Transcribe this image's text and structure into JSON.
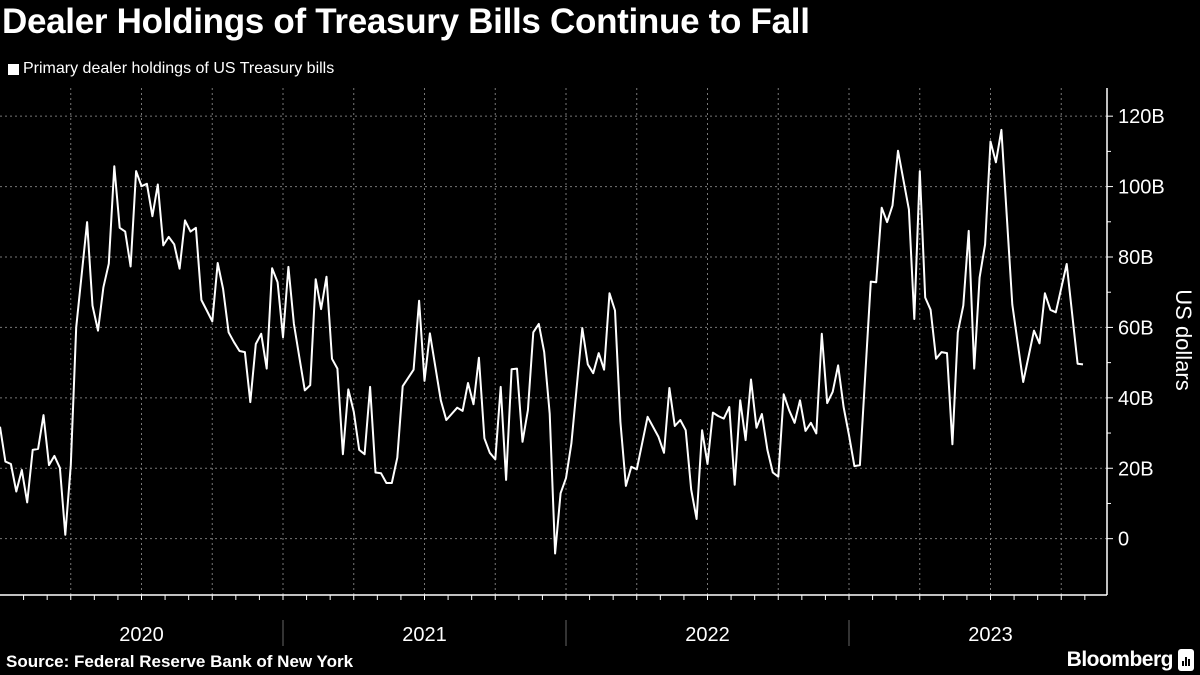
{
  "chart_data": {
    "type": "line",
    "title": "Dealer Holdings of Treasury Bills Continue to Fall",
    "ylabel": "US dollars",
    "xlabel": "",
    "x_tick_labels": [
      "2020",
      "2021",
      "2022",
      "2023"
    ],
    "y_ticks": [
      0,
      20,
      40,
      60,
      80,
      100,
      120
    ],
    "y_tick_labels": [
      "0",
      "20B",
      "40B",
      "60B",
      "80B",
      "100B",
      "120B"
    ],
    "ylim": [
      -16,
      128
    ],
    "y_unit": "billions of US dollars",
    "grid": true,
    "legend_position": "top-left",
    "line_color": "#ffffff",
    "background_color": "#000000",
    "series": [
      {
        "name": "Primary dealer holdings of US Treasury bills",
        "points": [
          [
            "2020-W01",
            31.8
          ],
          [
            "2020-W02",
            21.9
          ],
          [
            "2020-W03",
            21.2
          ],
          [
            "2020-W04",
            13.4
          ],
          [
            "2020-W05",
            19.5
          ],
          [
            "2020-W06",
            10.3
          ],
          [
            "2020-W07",
            25.2
          ],
          [
            "2020-W08",
            25.5
          ],
          [
            "2020-W09",
            35.1
          ],
          [
            "2020-W10",
            20.9
          ],
          [
            "2020-W11",
            23.5
          ],
          [
            "2020-W12",
            20.1
          ],
          [
            "2020-W13",
            1.1
          ],
          [
            "2020-W14",
            20.9
          ],
          [
            "2020-W15",
            60.0
          ],
          [
            "2020-W17",
            89.9
          ],
          [
            "2020-W18",
            66.2
          ],
          [
            "2020-W19",
            59.1
          ],
          [
            "2020-W20",
            71.4
          ],
          [
            "2020-W21",
            78.1
          ],
          [
            "2020-W22",
            105.8
          ],
          [
            "2020-W23",
            88.3
          ],
          [
            "2020-W24",
            87.2
          ],
          [
            "2020-W25",
            77.3
          ],
          [
            "2020-W26",
            104.4
          ],
          [
            "2020-W27",
            100.1
          ],
          [
            "2020-W28",
            100.8
          ],
          [
            "2020-W29",
            91.6
          ],
          [
            "2020-W30",
            100.6
          ],
          [
            "2020-W31",
            83.3
          ],
          [
            "2020-W32",
            85.7
          ],
          [
            "2020-W33",
            83.6
          ],
          [
            "2020-W34",
            76.7
          ],
          [
            "2020-W35",
            90.4
          ],
          [
            "2020-W36",
            87.2
          ],
          [
            "2020-W37",
            88.3
          ],
          [
            "2020-W38",
            67.8
          ],
          [
            "2020-W39",
            64.8
          ],
          [
            "2020-W40",
            61.7
          ],
          [
            "2020-W41",
            78.3
          ],
          [
            "2020-W42",
            70.9
          ],
          [
            "2020-W43",
            58.6
          ],
          [
            "2020-W44",
            55.8
          ],
          [
            "2020-W45",
            53.3
          ],
          [
            "2020-W46",
            53.0
          ],
          [
            "2020-W47",
            38.8
          ],
          [
            "2020-W48",
            55.3
          ],
          [
            "2020-W49",
            58.2
          ],
          [
            "2020-W50",
            48.3
          ],
          [
            "2020-W51",
            76.8
          ],
          [
            "2020-W52",
            72.8
          ],
          [
            "2021-W01",
            57.2
          ],
          [
            "2021-W02",
            77.2
          ],
          [
            "2021-W03",
            61.0
          ],
          [
            "2021-W04",
            51.6
          ],
          [
            "2021-W05",
            42.1
          ],
          [
            "2021-W06",
            43.6
          ],
          [
            "2021-W07",
            73.7
          ],
          [
            "2021-W08",
            65.2
          ],
          [
            "2021-W09",
            74.4
          ],
          [
            "2021-W10",
            51.1
          ],
          [
            "2021-W11",
            48.3
          ],
          [
            "2021-W12",
            24.0
          ],
          [
            "2021-W13",
            42.4
          ],
          [
            "2021-W14",
            36.0
          ],
          [
            "2021-W15",
            25.2
          ],
          [
            "2021-W16",
            24.0
          ],
          [
            "2021-W17",
            43.1
          ],
          [
            "2021-W18",
            18.8
          ],
          [
            "2021-W19",
            18.6
          ],
          [
            "2021-W20",
            15.8
          ],
          [
            "2021-W21",
            15.8
          ],
          [
            "2021-W22",
            23.0
          ],
          [
            "2021-W23",
            43.3
          ],
          [
            "2021-W25",
            48.0
          ],
          [
            "2021-W26",
            67.6
          ],
          [
            "2021-W27",
            44.8
          ],
          [
            "2021-W28",
            58.3
          ],
          [
            "2021-W30",
            39.3
          ],
          [
            "2021-W31",
            33.7
          ],
          [
            "2021-W33",
            37.2
          ],
          [
            "2021-W34",
            36.3
          ],
          [
            "2021-W35",
            44.2
          ],
          [
            "2021-W36",
            38.2
          ],
          [
            "2021-W37",
            51.4
          ],
          [
            "2021-W38",
            28.5
          ],
          [
            "2021-W39",
            24.4
          ],
          [
            "2021-W40",
            22.5
          ],
          [
            "2021-W41",
            43.1
          ],
          [
            "2021-W42",
            16.7
          ],
          [
            "2021-W43",
            48.1
          ],
          [
            "2021-W44",
            48.3
          ],
          [
            "2021-W45",
            27.5
          ],
          [
            "2021-W46",
            36.5
          ],
          [
            "2021-W47",
            58.6
          ],
          [
            "2021-W48",
            61.0
          ],
          [
            "2021-W49",
            53.0
          ],
          [
            "2021-W50",
            35.5
          ],
          [
            "2021-W51",
            -4.2
          ],
          [
            "2021-W52",
            12.9
          ],
          [
            "2022-W01",
            17.2
          ],
          [
            "2022-W02",
            27.1
          ],
          [
            "2022-W04",
            59.8
          ],
          [
            "2022-W05",
            49.5
          ],
          [
            "2022-W06",
            47.0
          ],
          [
            "2022-W07",
            52.7
          ],
          [
            "2022-W08",
            48.0
          ],
          [
            "2022-W09",
            69.7
          ],
          [
            "2022-W10",
            64.8
          ],
          [
            "2022-W11",
            33.2
          ],
          [
            "2022-W12",
            15.0
          ],
          [
            "2022-W13",
            20.4
          ],
          [
            "2022-W14",
            19.7
          ],
          [
            "2022-W16",
            34.6
          ],
          [
            "2022-W18",
            28.9
          ],
          [
            "2022-W19",
            24.4
          ],
          [
            "2022-W20",
            42.8
          ],
          [
            "2022-W21",
            32.0
          ],
          [
            "2022-W22",
            33.7
          ],
          [
            "2022-W23",
            30.8
          ],
          [
            "2022-W24",
            13.9
          ],
          [
            "2022-W25",
            5.6
          ],
          [
            "2022-W26",
            30.8
          ],
          [
            "2022-W27",
            21.2
          ],
          [
            "2022-W28",
            35.8
          ],
          [
            "2022-W29",
            34.8
          ],
          [
            "2022-W30",
            34.1
          ],
          [
            "2022-W31",
            37.4
          ],
          [
            "2022-W32",
            15.3
          ],
          [
            "2022-W33",
            39.3
          ],
          [
            "2022-W34",
            28.0
          ],
          [
            "2022-W35",
            45.2
          ],
          [
            "2022-W36",
            31.5
          ],
          [
            "2022-W37",
            35.4
          ],
          [
            "2022-W38",
            25.2
          ],
          [
            "2022-W39",
            18.8
          ],
          [
            "2022-W40",
            17.6
          ],
          [
            "2022-W41",
            41.0
          ],
          [
            "2022-W42",
            36.5
          ],
          [
            "2022-W43",
            32.9
          ],
          [
            "2022-W44",
            39.3
          ],
          [
            "2022-W45",
            30.6
          ],
          [
            "2022-W46",
            32.9
          ],
          [
            "2022-W47",
            29.9
          ],
          [
            "2022-W48",
            58.2
          ],
          [
            "2022-W49",
            38.5
          ],
          [
            "2022-W50",
            41.7
          ],
          [
            "2022-W51",
            49.2
          ],
          [
            "2022-W52",
            37.4
          ],
          [
            "2023-W01",
            29.4
          ],
          [
            "2023-W02",
            20.6
          ],
          [
            "2023-W03",
            20.9
          ],
          [
            "2023-W05",
            73.0
          ],
          [
            "2023-W06",
            72.8
          ],
          [
            "2023-W07",
            94.0
          ],
          [
            "2023-W08",
            89.9
          ],
          [
            "2023-W09",
            94.6
          ],
          [
            "2023-W10",
            110.2
          ],
          [
            "2023-W12",
            93.5
          ],
          [
            "2023-W13",
            62.4
          ],
          [
            "2023-W14",
            104.4
          ],
          [
            "2023-W15",
            68.5
          ],
          [
            "2023-W16",
            65.0
          ],
          [
            "2023-W17",
            51.1
          ],
          [
            "2023-W18",
            53.0
          ],
          [
            "2023-W19",
            52.7
          ],
          [
            "2023-W20",
            26.8
          ],
          [
            "2023-W21",
            58.6
          ],
          [
            "2023-W22",
            66.2
          ],
          [
            "2023-W23",
            87.4
          ],
          [
            "2023-W24",
            48.3
          ],
          [
            "2023-W25",
            74.2
          ],
          [
            "2023-W26",
            83.6
          ],
          [
            "2023-W27",
            112.8
          ],
          [
            "2023-W28",
            106.9
          ],
          [
            "2023-W29",
            116.1
          ],
          [
            "2023-W31",
            66.5
          ],
          [
            "2023-W33",
            44.5
          ],
          [
            "2023-W35",
            59.1
          ],
          [
            "2023-W36",
            55.5
          ],
          [
            "2023-W37",
            69.7
          ],
          [
            "2023-W38",
            65.0
          ],
          [
            "2023-W39",
            64.3
          ],
          [
            "2023-W41",
            78.0
          ],
          [
            "2023-W43",
            49.7
          ],
          [
            "2023-W44",
            49.5
          ]
        ]
      }
    ]
  },
  "header": {
    "title": "Dealer Holdings of Treasury Bills Continue to Fall",
    "legend_label": "Primary dealer holdings of US Treasury bills"
  },
  "footer": {
    "source": "Source: Federal Reserve Bank of New York",
    "brand": "Bloomberg"
  }
}
